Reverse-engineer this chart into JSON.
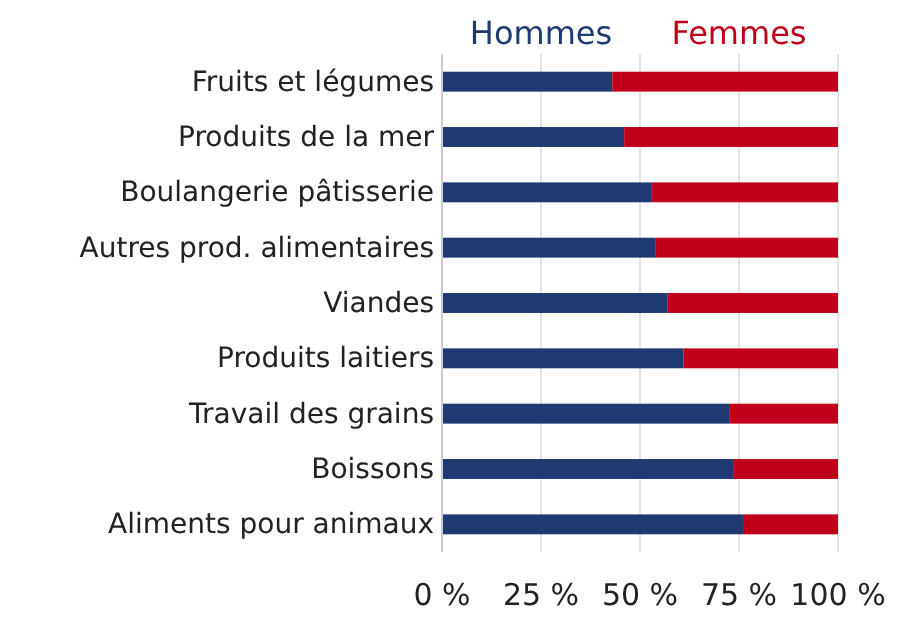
{
  "chart_data": {
    "type": "bar",
    "orientation": "horizontal",
    "stacked": true,
    "legend": "top",
    "grid": "x",
    "categories": [
      "Fruits et légumes",
      "Produits de la mer",
      "Boulangerie pâtisserie",
      "Autres prod. alimentaires",
      "Viandes",
      "Produits laitiers",
      "Travail des grains",
      "Boissons",
      "Aliments pour animaux"
    ],
    "series": [
      {
        "name": "Hommes",
        "color": "#1f3a73",
        "values": [
          43,
          46,
          53,
          54,
          57,
          61,
          72.5,
          73.5,
          76
        ]
      },
      {
        "name": "Femmes",
        "color": "#c0001a",
        "values": [
          57,
          54,
          47,
          46,
          43,
          39,
          27.5,
          26.5,
          24
        ]
      }
    ],
    "xlim": [
      0,
      100
    ],
    "xticks": [
      {
        "value": 0,
        "label": "0 %"
      },
      {
        "value": 25,
        "label": "25 %"
      },
      {
        "value": 50,
        "label": "50 %"
      },
      {
        "value": 75,
        "label": "75 %"
      },
      {
        "value": 100,
        "label": "100 %"
      }
    ]
  }
}
